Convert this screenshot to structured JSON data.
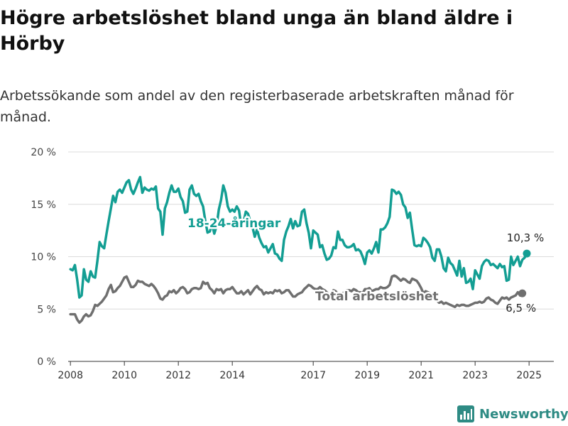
{
  "title": "Högre arbetslöshet bland unga än bland äldre i Hörby",
  "subtitle": "Arbetssökande som andel av den registerbaserade arbetskraften månad för månad.",
  "brand": {
    "name": "Newsworthy",
    "icon": "newsworthy-bar-chart-logo-icon",
    "color": "#2e8b84"
  },
  "chart_data": {
    "type": "line",
    "xlim": [
      "2007-12",
      "2025-12"
    ],
    "ylim": [
      0,
      20
    ],
    "y_ticks": [
      0,
      5,
      10,
      15,
      20
    ],
    "y_tick_labels": [
      "0 %",
      "5 %",
      "10 %",
      "15 %",
      "20 %"
    ],
    "x_ticks": [
      "2008-01",
      "2010-01",
      "2012-01",
      "2014-01",
      "2017-01",
      "2019-01",
      "2021-01",
      "2023-01",
      "2025-01"
    ],
    "x_tick_labels": [
      "2008",
      "2010",
      "2012",
      "2014",
      "2017",
      "2019",
      "2021",
      "2023",
      "2025"
    ],
    "grid": "horizontal",
    "legend": "inline labels",
    "series": [
      {
        "name": "18-24-åringar",
        "color": "#139e93",
        "start": "2008-01",
        "end_label": "10,3 %",
        "values": [
          8.8,
          8.7,
          9.2,
          7.8,
          6.1,
          6.3,
          8.8,
          7.8,
          7.6,
          8.6,
          8.1,
          8.0,
          9.6,
          11.4,
          11.0,
          10.8,
          12.1,
          13.4,
          14.6,
          15.8,
          15.2,
          16.2,
          16.4,
          16.1,
          16.6,
          17.1,
          17.3,
          16.4,
          16.0,
          16.5,
          17.1,
          17.6,
          16.1,
          16.6,
          16.4,
          16.3,
          16.5,
          16.4,
          16.7,
          14.6,
          14.3,
          12.1,
          14.6,
          15.2,
          16.1,
          16.8,
          16.2,
          16.2,
          16.5,
          15.7,
          15.3,
          14.2,
          14.3,
          16.4,
          16.8,
          16.0,
          15.8,
          16.0,
          15.3,
          14.8,
          13.4,
          12.3,
          12.4,
          13.1,
          12.2,
          12.9,
          14.5,
          15.4,
          16.8,
          16.1,
          14.8,
          14.3,
          14.5,
          14.3,
          14.8,
          14.4,
          12.9,
          13.3,
          14.3,
          14.1,
          13.4,
          12.8,
          11.9,
          12.6,
          11.8,
          11.3,
          10.9,
          11.0,
          10.4,
          10.8,
          11.2,
          10.3,
          10.2,
          9.8,
          9.6,
          11.6,
          12.4,
          12.9,
          13.6,
          12.7,
          13.4,
          12.9,
          13.0,
          14.3,
          14.5,
          13.2,
          12.3,
          10.8,
          12.5,
          12.3,
          12.1,
          10.9,
          11.1,
          10.3,
          9.7,
          9.8,
          10.1,
          10.9,
          10.8,
          12.4,
          11.6,
          11.6,
          11.1,
          10.9,
          10.9,
          11.0,
          11.2,
          10.6,
          10.7,
          10.5,
          10.0,
          9.3,
          10.4,
          10.6,
          10.3,
          10.8,
          11.4,
          10.4,
          12.6,
          12.6,
          12.8,
          13.2,
          13.8,
          16.4,
          16.3,
          16.0,
          16.2,
          15.9,
          15.0,
          14.7,
          13.7,
          14.2,
          12.6,
          11.1,
          11.0,
          11.1,
          11.0,
          11.8,
          11.6,
          11.3,
          10.9,
          9.9,
          9.6,
          10.7,
          10.7,
          10.0,
          8.9,
          8.6,
          9.9,
          9.4,
          9.2,
          8.7,
          8.2,
          9.6,
          8.1,
          8.9,
          7.5,
          7.6,
          7.9,
          6.9,
          8.7,
          8.3,
          7.9,
          9.1,
          9.5,
          9.7,
          9.6,
          9.2,
          9.3,
          9.1,
          8.9,
          9.3,
          9.0,
          9.1,
          7.7,
          7.8,
          10.0,
          9.2,
          9.6,
          10.0,
          9.1,
          9.7,
          9.9,
          10.3
        ]
      },
      {
        "name": "Total arbetslöshet",
        "color": "#6f6f6f",
        "start": "2008-01",
        "end_label": "6,5 %",
        "values": [
          4.5,
          4.5,
          4.5,
          4.0,
          3.7,
          3.9,
          4.3,
          4.5,
          4.3,
          4.4,
          4.8,
          5.4,
          5.3,
          5.5,
          5.7,
          6.0,
          6.3,
          6.9,
          7.3,
          6.6,
          6.7,
          7.0,
          7.2,
          7.6,
          8.0,
          8.1,
          7.6,
          7.1,
          7.1,
          7.3,
          7.7,
          7.6,
          7.6,
          7.4,
          7.3,
          7.2,
          7.4,
          7.2,
          6.9,
          6.5,
          6.0,
          5.9,
          6.2,
          6.3,
          6.7,
          6.6,
          6.8,
          6.5,
          6.7,
          7.0,
          7.1,
          6.9,
          6.5,
          6.6,
          6.9,
          7.0,
          7.0,
          6.9,
          7.0,
          7.6,
          7.4,
          7.5,
          7.0,
          6.8,
          6.5,
          6.9,
          6.8,
          6.9,
          6.5,
          6.8,
          6.9,
          6.9,
          7.1,
          6.8,
          6.5,
          6.5,
          6.7,
          6.4,
          6.6,
          6.8,
          6.4,
          6.7,
          7.0,
          7.2,
          6.9,
          6.8,
          6.4,
          6.6,
          6.5,
          6.6,
          6.5,
          6.8,
          6.7,
          6.8,
          6.5,
          6.6,
          6.8,
          6.8,
          6.5,
          6.2,
          6.2,
          6.4,
          6.5,
          6.6,
          6.9,
          7.1,
          7.3,
          7.2,
          7.0,
          6.9,
          6.9,
          7.1,
          6.9,
          6.8,
          6.6,
          6.4,
          6.5,
          6.8,
          6.7,
          6.4,
          6.4,
          6.5,
          6.6,
          6.8,
          6.8,
          6.7,
          6.9,
          6.8,
          6.6,
          6.6,
          6.5,
          6.9,
          6.9,
          7.0,
          6.7,
          6.8,
          6.9,
          6.9,
          7.1,
          7.0,
          7.0,
          7.1,
          7.3,
          8.1,
          8.2,
          8.1,
          7.9,
          7.7,
          7.9,
          7.8,
          7.6,
          7.5,
          7.9,
          7.8,
          7.7,
          7.4,
          7.0,
          6.5,
          6.7,
          6.6,
          6.5,
          6.2,
          5.9,
          5.8,
          5.6,
          5.7,
          5.5,
          5.6,
          5.5,
          5.4,
          5.3,
          5.2,
          5.4,
          5.3,
          5.4,
          5.4,
          5.3,
          5.3,
          5.4,
          5.5,
          5.6,
          5.6,
          5.7,
          5.6,
          5.7,
          6.0,
          6.1,
          5.9,
          5.8,
          5.6,
          5.5,
          5.8,
          6.1,
          6.0,
          6.1,
          5.9,
          6.1,
          6.2,
          6.3,
          6.6,
          6.3,
          6.5
        ]
      }
    ]
  }
}
